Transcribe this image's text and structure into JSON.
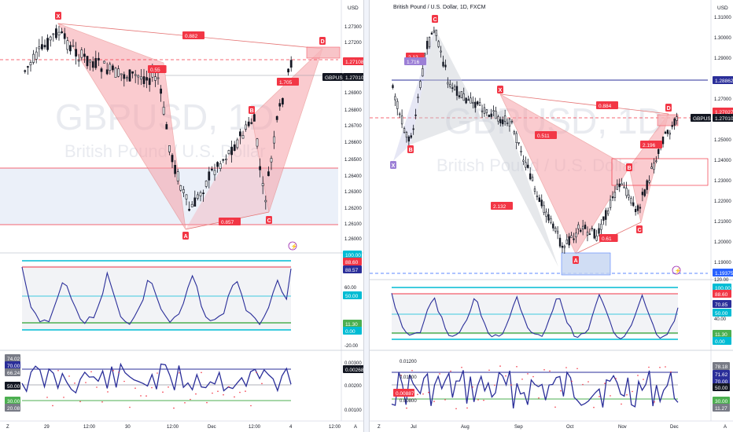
{
  "left": {
    "header": "",
    "watermark_symbol": "GBPUSD, 1D",
    "watermark_sub": "British Pound / U.S. Dollar",
    "currency": "USD",
    "price_labels": [
      "1.27300",
      "1.27200",
      "1.27000",
      "1.26900",
      "1.26800",
      "1.26700",
      "1.26600",
      "1.26500",
      "1.26400",
      "1.26300",
      "1.26200",
      "1.26100",
      "1.26000"
    ],
    "current_label": "1.27108",
    "symbol_tag": "GBPUSD",
    "symbol_price": "1.27010",
    "pattern_points": {
      "X": "X",
      "A": "A",
      "B": "B",
      "C": "C",
      "D": "D"
    },
    "ratios": {
      "xb": "0.55",
      "xd": "0.882",
      "ac": "0.857",
      "bd": "1.705"
    },
    "rsi_labels": [
      "100.00",
      "88.60",
      "88.57",
      "60.00",
      "50.00",
      "11.30",
      "0.00",
      "-20.00"
    ],
    "rsi_tag_values": [
      "100.00",
      "88.60",
      "88.57",
      "50.00",
      "11.30",
      "0.00"
    ],
    "osc_labels": [
      "0.00300",
      "0.00268",
      "0.00200",
      "0.00100"
    ],
    "osc_left_values": [
      "74.02",
      "70.00",
      "66.24",
      "50.00",
      "30.00",
      "20.08"
    ],
    "time_labels": [
      "29",
      "12:00",
      "30",
      "12:00",
      "Dec",
      "12:00",
      "4",
      "12:00"
    ],
    "corner_left": "Z",
    "corner_right": "A"
  },
  "right": {
    "header": "British Pound / U.S. Dollar, 1D, FXCM",
    "watermark_symbol": "GBPUSD, 1D",
    "watermark_sub": "British Pound / U.S. Dollar",
    "currency": "USD",
    "price_labels": [
      "1.31000",
      "1.30000",
      "1.29000",
      "1.28000",
      "1.27000",
      "1.26000",
      "1.25000",
      "1.24000",
      "1.23000",
      "1.22000",
      "1.21000",
      "1.20000",
      "1.19000"
    ],
    "current_label": "1.27027",
    "symbol_tag": "GBPUSD",
    "symbol_price": "1.27010",
    "line_tag": "1.28862",
    "low_tag": "1.19375",
    "pattern_points": {
      "X": "X",
      "A": "A",
      "B": "B",
      "C": "C",
      "D": "D",
      "X2": "X",
      "B2": "B",
      "C2": "C"
    },
    "ratios": {
      "xd": "0.884",
      "xb": "0.511",
      "ac": "0.61",
      "bd": "2.196",
      "ax": "2.132",
      "top": "2.12",
      "top_small": "1.716"
    },
    "rsi_labels": [
      "120.00",
      "100.00",
      "88.60",
      "70.85",
      "50.00",
      "40.00",
      "11.30",
      "0.00"
    ],
    "osc_labels": [
      "0.01200",
      "0.01000",
      "0.00887",
      "0.00800"
    ],
    "osc_left_values": [
      "78.18",
      "71.62",
      "70.00",
      "50.00",
      "30.00",
      "11.27"
    ],
    "time_labels": [
      "Jul",
      "Aug",
      "Sep",
      "Oct",
      "Nov",
      "Dec"
    ],
    "corner_left": "Z",
    "corner_right": "A"
  },
  "colors": {
    "up": "#089981",
    "down": "#f23645",
    "pattern_fill": "#f7a1a8",
    "pattern_stroke": "#e57373",
    "rsi_line": "#2a2e99",
    "band_cyan": "#00bcd4",
    "band_red": "#f23645",
    "band_green": "#4caf50",
    "blue_zone": "#c5d5f2"
  }
}
